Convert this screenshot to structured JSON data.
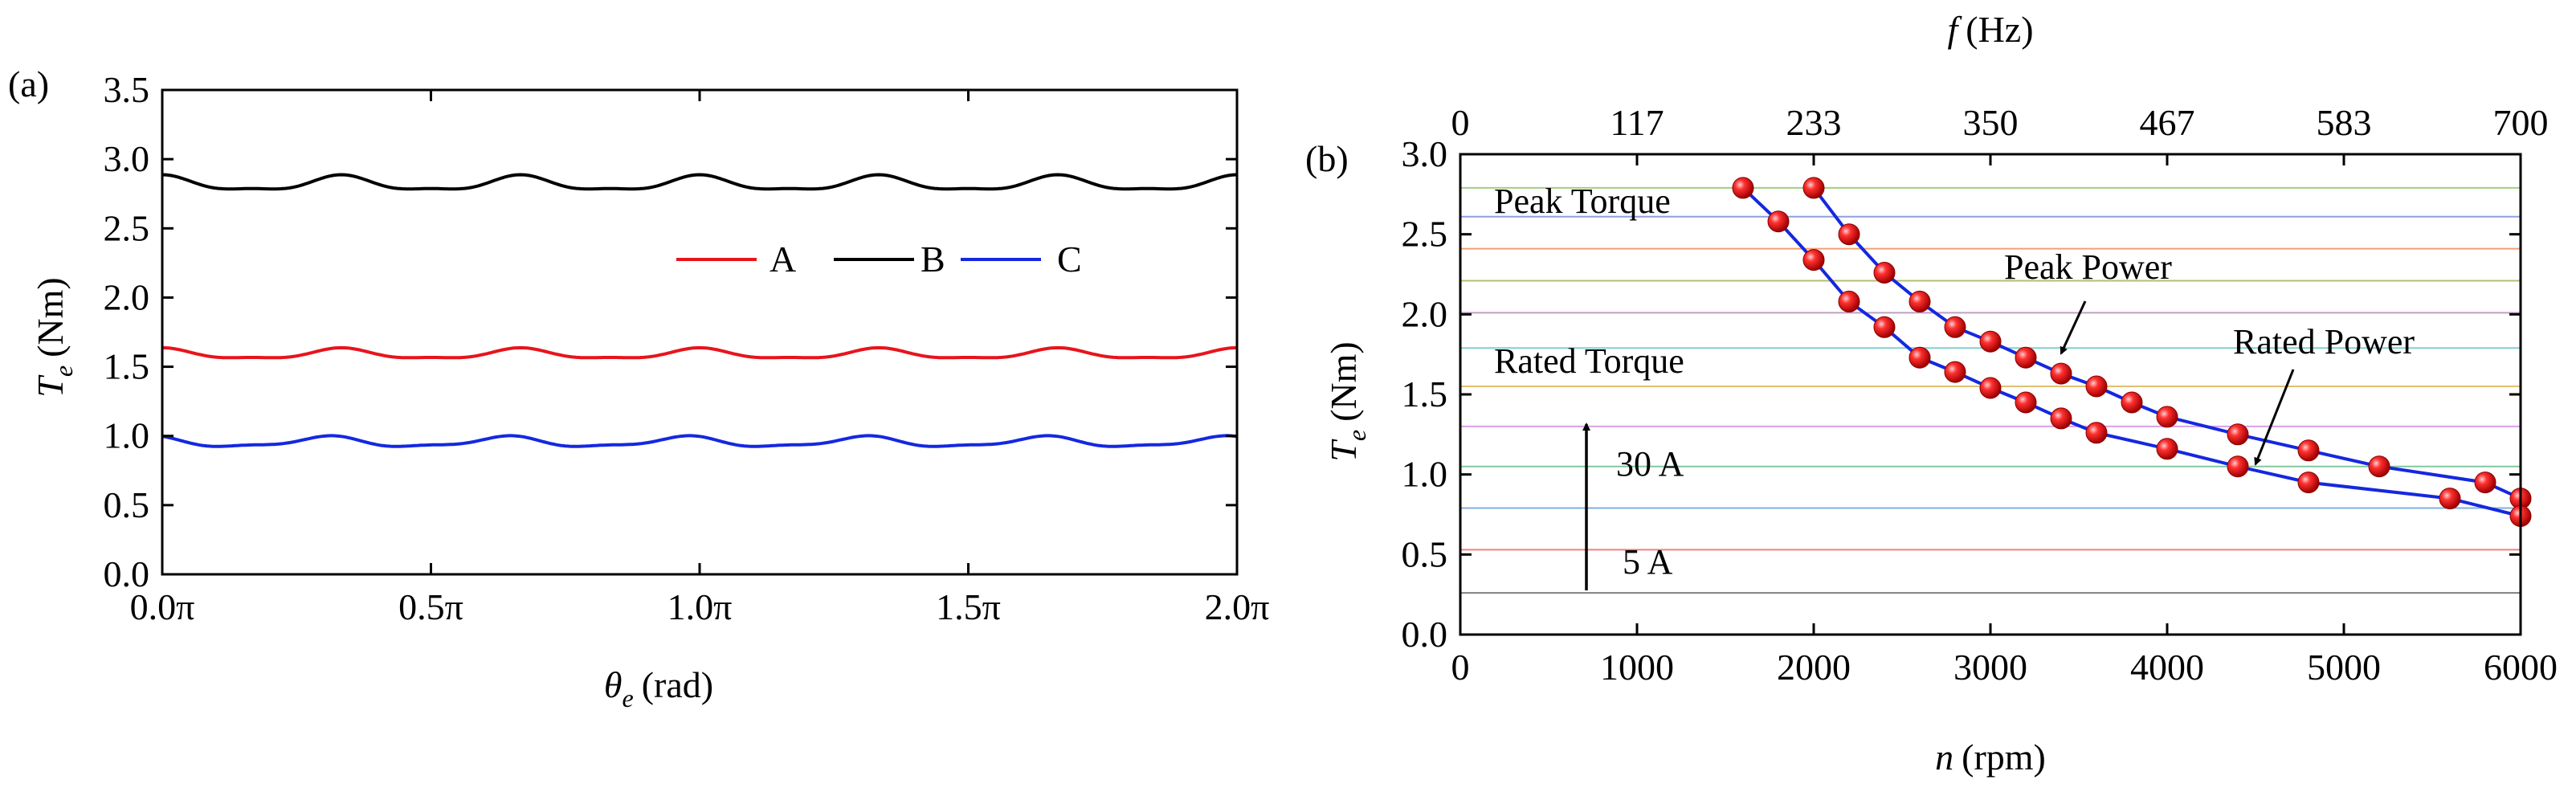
{
  "chart_data": [
    {
      "panel_label": "(a)",
      "type": "line",
      "title": "",
      "xlabel": {
        "symbol": "θ",
        "sub": "e",
        "unit": "(rad)"
      },
      "ylabel": {
        "symbol": "T",
        "sub": "e",
        "unit": "(Nm)"
      },
      "xlim": [
        0,
        2
      ],
      "ylim": [
        0,
        3.5
      ],
      "xtick_values": [
        0,
        0.5,
        1.0,
        1.5,
        2.0
      ],
      "xtick_labels": [
        "0.0π",
        "0.5π",
        "1.0π",
        "1.5π",
        "2.0π"
      ],
      "ytick_values": [
        0,
        0.5,
        1.0,
        1.5,
        2.0,
        2.5,
        3.0,
        3.5
      ],
      "ytick_labels": [
        "0.0",
        "0.5",
        "1.0",
        "1.5",
        "2.0",
        "2.5",
        "3.0",
        "3.5"
      ],
      "legend_position": "middle-right",
      "series": [
        {
          "name": "A",
          "color": "#e8141c",
          "mean": 1.59,
          "ripple": 0.035,
          "periods": 6,
          "phase": 0.0
        },
        {
          "name": "B",
          "color": "#000000",
          "mean": 2.82,
          "ripple": 0.05,
          "periods": 6,
          "phase": 0.0
        },
        {
          "name": "C",
          "color": "#1428e0",
          "mean": 0.955,
          "ripple": 0.035,
          "periods": 6,
          "phase": 0.5
        }
      ]
    },
    {
      "panel_label": "(b)",
      "type": "line",
      "title": "",
      "xlabel": {
        "symbol": "n",
        "unit": "(rpm)"
      },
      "ylabel": {
        "symbol": "T",
        "sub": "e",
        "unit": "(Nm)"
      },
      "top_xlabel": {
        "symbol": "f",
        "unit": "(Hz)"
      },
      "xlim": [
        0,
        6000
      ],
      "ylim": [
        0,
        3.0
      ],
      "xtick_values": [
        0,
        1000,
        2000,
        3000,
        4000,
        5000,
        6000
      ],
      "xtick_labels": [
        "0",
        "1000",
        "2000",
        "3000",
        "4000",
        "5000",
        "6000"
      ],
      "ytick_values": [
        0,
        0.5,
        1.0,
        1.5,
        2.0,
        2.5,
        3.0
      ],
      "ytick_labels": [
        "0.0",
        "0.5",
        "1.0",
        "1.5",
        "2.0",
        "2.5",
        "3.0"
      ],
      "top_tick_values": [
        0,
        1000,
        2000,
        3000,
        4000,
        5000,
        6000
      ],
      "top_tick_labels": [
        "0",
        "117",
        "233",
        "350",
        "467",
        "583",
        "700"
      ],
      "current_levels": {
        "values": [
          0.26,
          0.53,
          0.79,
          1.05,
          1.3,
          1.55,
          1.79,
          2.01,
          2.21,
          2.41,
          2.61,
          2.79
        ],
        "colors": [
          "#808080",
          "#f08080",
          "#80b0e0",
          "#80c8a0",
          "#d8a0e8",
          "#e0c070",
          "#80d0d0",
          "#c0a0c0",
          "#b0c070",
          "#f0a070",
          "#90a0e0",
          "#a0d080"
        ]
      },
      "series": [
        {
          "name": "Peak Power",
          "color": "#1428e0",
          "marker_color": "#e8141c",
          "x": [
            2000,
            2200,
            2400,
            2600,
            2800,
            3000,
            3200,
            3400,
            3600,
            3800,
            4000,
            4400,
            4800,
            5200,
            5800,
            6000
          ],
          "y": [
            2.79,
            2.5,
            2.26,
            2.08,
            1.92,
            1.83,
            1.73,
            1.63,
            1.55,
            1.45,
            1.36,
            1.25,
            1.15,
            1.05,
            0.95,
            0.85
          ]
        },
        {
          "name": "Rated Power",
          "color": "#1428e0",
          "marker_color": "#e8141c",
          "x": [
            1600,
            1800,
            2000,
            2200,
            2400,
            2600,
            2800,
            3000,
            3200,
            3400,
            3600,
            4000,
            4400,
            4800,
            5600,
            6000
          ],
          "y": [
            2.79,
            2.58,
            2.34,
            2.08,
            1.92,
            1.73,
            1.64,
            1.54,
            1.45,
            1.35,
            1.26,
            1.16,
            1.05,
            0.95,
            0.85,
            0.74
          ]
        }
      ],
      "annotations": {
        "peak_torque": "Peak Torque",
        "rated_torque": "Rated Torque",
        "peak_power": "Peak Power",
        "rated_power": "Rated Power",
        "current_high": "30 A",
        "current_low": "5 A"
      }
    }
  ]
}
